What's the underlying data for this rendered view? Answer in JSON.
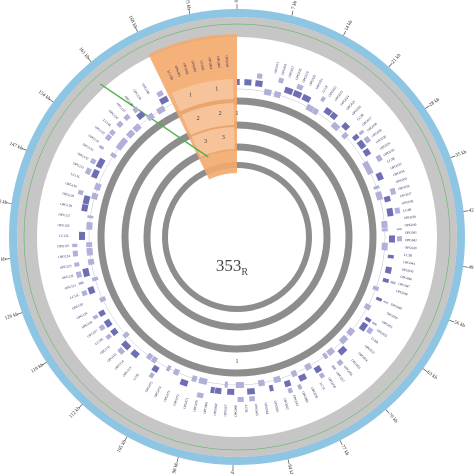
{
  "figure": {
    "center_label": {
      "main": "353",
      "sub": "R"
    },
    "colors": {
      "outer_ring": "#8ec5e2",
      "gray_band": "#c6c6c6",
      "inner_rings": "#8d8d8d",
      "forward_genes": "#6e6eb4",
      "reverse_genes": "#b0b0d8",
      "highlight": "#f3a86b",
      "green_line": "#4fb34f",
      "gene_text": "#1f1f5a"
    },
    "highlight_region_numbers": [
      "1",
      "2",
      "3",
      "1",
      "2",
      "3"
    ],
    "inner_ring_numbers": [
      "1",
      "1"
    ],
    "axis_ticks": [
      {
        "kb": 0,
        "label": "0 kb"
      },
      {
        "kb": 7,
        "label": "7 kb"
      },
      {
        "kb": 14,
        "label": "14 kb"
      },
      {
        "kb": 21,
        "label": "21 kb"
      },
      {
        "kb": 28,
        "label": "28 kb"
      },
      {
        "kb": 35,
        "label": "35 kb"
      },
      {
        "kb": 42,
        "label": "42 kb"
      },
      {
        "kb": 49,
        "label": "49 kb"
      },
      {
        "kb": 56,
        "label": "56 kb"
      },
      {
        "kb": 63,
        "label": "63 kb"
      },
      {
        "kb": 70,
        "label": "70 kb"
      },
      {
        "kb": 77,
        "label": "77 kb"
      },
      {
        "kb": 84,
        "label": "84 kb"
      },
      {
        "kb": 91,
        "label": "91 kb"
      },
      {
        "kb": 98,
        "label": "98 kb"
      },
      {
        "kb": 105,
        "label": "105 kb"
      },
      {
        "kb": 112,
        "label": "112 kb"
      },
      {
        "kb": 119,
        "label": "119 kb"
      },
      {
        "kb": 126,
        "label": "126 kb"
      },
      {
        "kb": 133,
        "label": "133 kb"
      },
      {
        "kb": 140,
        "label": "140 kb"
      },
      {
        "kb": 147,
        "label": "147 kb"
      },
      {
        "kb": 154,
        "label": "154 kb"
      },
      {
        "kb": 161,
        "label": "161 kb"
      },
      {
        "kb": 168,
        "label": "168 kb"
      },
      {
        "kb": 175,
        "label": "175 kb"
      }
    ],
    "genome_length_kb": 181,
    "highlight_region_kb": [
      168,
      181
    ],
    "green_line_kb": 160,
    "gene_labels_left": [
      "LC9L",
      "OPG113",
      "OPG114",
      "OPG115",
      "OPG116",
      "LC10L",
      "OPG117",
      "OPG118",
      "OPG119",
      "OPG120",
      "LC11L",
      "OPG121",
      "OPG122",
      "OPG123",
      "OPG124",
      "OPG125",
      "LC12L",
      "OPG126",
      "OPG127",
      "OPG128",
      "OPG129",
      "OPG130",
      "LC13L",
      "OPG131",
      "OPG132",
      "OPG133",
      "OPG134",
      "OPG135",
      "LC14L",
      "OPG136",
      "OPG137",
      "OPG138",
      "OPG139",
      "OPG140"
    ],
    "gene_labels_right": [
      "OPG015",
      "OPG016",
      "OPG017",
      "OPG018",
      "OPG019",
      "OPG020",
      "OPG021",
      "LC1R",
      "OPG022",
      "OPG023",
      "OPG024",
      "OPG025",
      "OPG026",
      "LC2R",
      "OPG027",
      "OPG028",
      "OPG029",
      "OPG030",
      "OPG031",
      "OPG032",
      "LC3R",
      "OPG033",
      "OPG034",
      "OPG035",
      "OPG036",
      "OPG037",
      "OPG038",
      "LC4R",
      "OPG039",
      "OPG040",
      "OPG041",
      "OPG042",
      "OPG043",
      "LC5R",
      "OPG044",
      "OPG045",
      "OPG046",
      "OPG047",
      "OPG048"
    ],
    "gene_labels_bottom": [
      "OPG049",
      "OPG050",
      "OPG051",
      "OPG052",
      "LC6R",
      "OPG053",
      "OPG054",
      "OPG055",
      "OPG056",
      "OPG057",
      "OPG058",
      "LC7L",
      "OPG059",
      "OPG060",
      "OPG061",
      "OPG062",
      "OPG063",
      "OPG064",
      "OPG065",
      "LC8L",
      "OPG066",
      "OPG067",
      "OPG068",
      "OPG069",
      "OPG070",
      "OPG071",
      "OPG072",
      "OPG073",
      "OPG074",
      "OPG075"
    ],
    "gene_labels_highlight": [
      "LC15R",
      "OPG001",
      "OPG002",
      "OPG003",
      "LC16R",
      "OPG004",
      "OPG005",
      "OPG006"
    ]
  }
}
